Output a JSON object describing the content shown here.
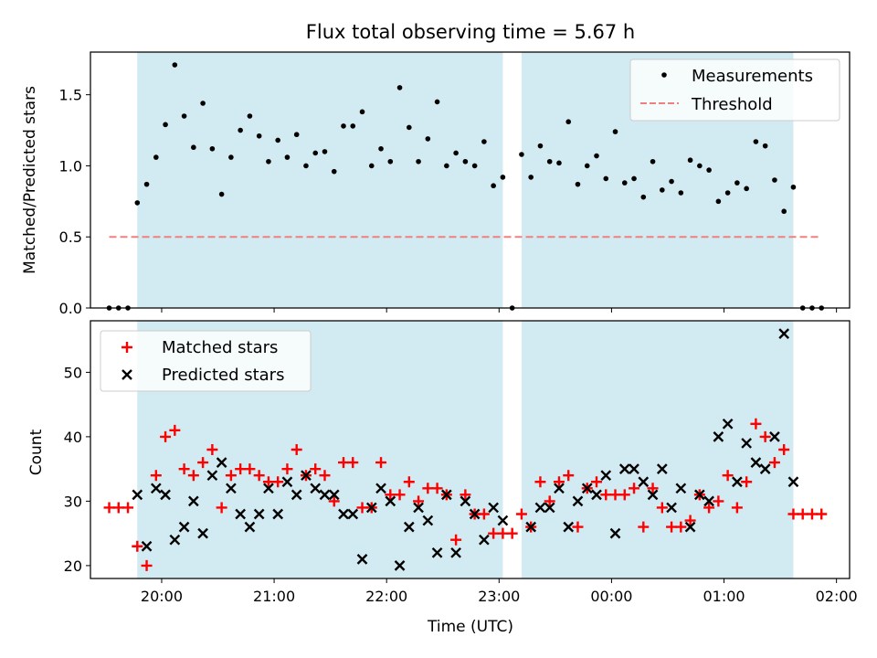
{
  "chart_data": [
    {
      "type": "scatter",
      "title": "Flux total observing time = 5.67 h",
      "ylabel": "Matched/Predicted stars",
      "ylim": [
        0,
        1.8
      ],
      "yticks": [
        0.0,
        0.5,
        1.0,
        1.5
      ],
      "ytick_labels": [
        "0.0",
        "0.5",
        "1.0",
        "1.5"
      ],
      "shaded_intervals": [
        [
          "19:47",
          "23:02"
        ],
        [
          "23:12",
          "01:37"
        ]
      ],
      "shade_color": "#add8e6",
      "legend_position": "upper right",
      "series": [
        {
          "name": "Measurements",
          "marker": "dot",
          "color": "#000000",
          "x": [
            "19:32",
            "19:37",
            "19:42",
            "19:47",
            "19:52",
            "19:57",
            "20:02",
            "20:07",
            "20:12",
            "20:17",
            "20:22",
            "20:27",
            "20:32",
            "20:37",
            "20:42",
            "20:47",
            "20:52",
            "20:57",
            "21:02",
            "21:07",
            "21:12",
            "21:17",
            "21:22",
            "21:27",
            "21:32",
            "21:37",
            "21:42",
            "21:47",
            "21:52",
            "21:57",
            "22:02",
            "22:07",
            "22:12",
            "22:17",
            "22:22",
            "22:27",
            "22:32",
            "22:37",
            "22:42",
            "22:47",
            "22:52",
            "22:57",
            "23:02",
            "23:07",
            "23:12",
            "23:17",
            "23:22",
            "23:27",
            "23:32",
            "23:37",
            "23:42",
            "23:47",
            "23:52",
            "23:57",
            "00:02",
            "00:07",
            "00:12",
            "00:17",
            "00:22",
            "00:27",
            "00:32",
            "00:37",
            "00:42",
            "00:47",
            "00:52",
            "00:57",
            "01:02",
            "01:07",
            "01:12",
            "01:17",
            "01:22",
            "01:27",
            "01:32",
            "01:37",
            "01:42",
            "01:47",
            "01:52"
          ],
          "y": [
            0.0,
            0.0,
            0.0,
            0.74,
            0.87,
            1.06,
            1.29,
            1.71,
            1.35,
            1.13,
            1.44,
            1.12,
            0.8,
            1.06,
            1.25,
            1.35,
            1.21,
            1.03,
            1.18,
            1.06,
            1.22,
            1.0,
            1.09,
            1.1,
            0.96,
            1.28,
            1.28,
            1.38,
            1.0,
            1.12,
            1.03,
            1.55,
            1.27,
            1.03,
            1.19,
            1.45,
            1.0,
            1.09,
            1.03,
            1.0,
            1.17,
            0.86,
            0.92,
            0.0,
            1.08,
            0.92,
            1.14,
            1.03,
            1.02,
            1.31,
            0.87,
            1.0,
            1.07,
            0.91,
            1.24,
            0.88,
            0.91,
            0.78,
            1.03,
            0.83,
            0.89,
            0.81,
            1.04,
            1.0,
            0.97,
            0.75,
            0.81,
            0.88,
            0.84,
            1.17,
            1.14,
            0.9,
            0.68,
            0.85,
            0.0,
            0.0,
            0.0
          ]
        },
        {
          "name": "Threshold",
          "marker": "dashed-line",
          "color": "#f08080",
          "x": [
            "19:32",
            "01:52"
          ],
          "y": [
            0.5,
            0.5
          ]
        }
      ]
    },
    {
      "type": "scatter",
      "xlabel": "Time (UTC)",
      "ylabel": "Count",
      "ylim": [
        18,
        58
      ],
      "yticks": [
        20,
        30,
        40,
        50
      ],
      "ytick_labels": [
        "20",
        "30",
        "40",
        "50"
      ],
      "xlim": [
        "19:22",
        "02:07"
      ],
      "xticks": [
        "20:00",
        "21:00",
        "22:00",
        "23:00",
        "00:00",
        "01:00",
        "02:00"
      ],
      "xtick_labels": [
        "20:00",
        "21:00",
        "22:00",
        "23:00",
        "00:00",
        "01:00",
        "02:00"
      ],
      "shaded_intervals": [
        [
          "19:47",
          "23:02"
        ],
        [
          "23:12",
          "01:37"
        ]
      ],
      "shade_color": "#add8e6",
      "legend_position": "upper left",
      "series": [
        {
          "name": "Matched stars",
          "marker": "plus",
          "color": "#ff0000",
          "x": [
            "19:32",
            "19:37",
            "19:42",
            "19:47",
            "19:52",
            "19:57",
            "20:02",
            "20:07",
            "20:12",
            "20:17",
            "20:22",
            "20:27",
            "20:32",
            "20:37",
            "20:42",
            "20:47",
            "20:52",
            "20:57",
            "21:02",
            "21:07",
            "21:12",
            "21:17",
            "21:22",
            "21:27",
            "21:32",
            "21:37",
            "21:42",
            "21:47",
            "21:52",
            "21:57",
            "22:02",
            "22:07",
            "22:12",
            "22:17",
            "22:22",
            "22:27",
            "22:32",
            "22:37",
            "22:42",
            "22:47",
            "22:52",
            "22:57",
            "23:02",
            "23:07",
            "23:12",
            "23:17",
            "23:22",
            "23:27",
            "23:32",
            "23:37",
            "23:42",
            "23:47",
            "23:52",
            "23:57",
            "00:02",
            "00:07",
            "00:12",
            "00:17",
            "00:22",
            "00:27",
            "00:32",
            "00:37",
            "00:42",
            "00:47",
            "00:52",
            "00:57",
            "01:02",
            "01:07",
            "01:12",
            "01:17",
            "01:22",
            "01:27",
            "01:32",
            "01:37",
            "01:42",
            "01:47",
            "01:52"
          ],
          "y": [
            29,
            29,
            29,
            23,
            20,
            34,
            40,
            41,
            35,
            34,
            36,
            38,
            29,
            34,
            35,
            35,
            34,
            33,
            33,
            35,
            38,
            34,
            35,
            34,
            30,
            36,
            36,
            29,
            29,
            36,
            31,
            31,
            33,
            30,
            32,
            32,
            31,
            24,
            31,
            28,
            28,
            25,
            25,
            25,
            28,
            26,
            33,
            30,
            33,
            34,
            26,
            32,
            33,
            31,
            31,
            31,
            32,
            26,
            32,
            29,
            26,
            26,
            27,
            31,
            29,
            30,
            34,
            29,
            33,
            42,
            40,
            36,
            38,
            28,
            28,
            28,
            28
          ]
        },
        {
          "name": "Predicted stars",
          "marker": "x",
          "color": "#000000",
          "x": [
            "19:47",
            "19:52",
            "19:57",
            "20:02",
            "20:07",
            "20:12",
            "20:17",
            "20:22",
            "20:27",
            "20:32",
            "20:37",
            "20:42",
            "20:47",
            "20:52",
            "20:57",
            "21:02",
            "21:07",
            "21:12",
            "21:17",
            "21:22",
            "21:27",
            "21:32",
            "21:37",
            "21:42",
            "21:47",
            "21:52",
            "21:57",
            "22:02",
            "22:07",
            "22:12",
            "22:17",
            "22:22",
            "22:27",
            "22:32",
            "22:37",
            "22:42",
            "22:47",
            "22:52",
            "22:57",
            "23:02",
            "23:17",
            "23:22",
            "23:27",
            "23:32",
            "23:37",
            "23:42",
            "23:47",
            "23:52",
            "23:57",
            "00:02",
            "00:07",
            "00:12",
            "00:17",
            "00:22",
            "00:27",
            "00:32",
            "00:37",
            "00:42",
            "00:47",
            "00:52",
            "00:57",
            "01:02",
            "01:07",
            "01:12",
            "01:17",
            "01:22",
            "01:27",
            "01:32",
            "01:37"
          ],
          "y": [
            31,
            23,
            32,
            31,
            24,
            26,
            30,
            25,
            34,
            36,
            32,
            28,
            26,
            28,
            32,
            28,
            33,
            31,
            34,
            32,
            31,
            31,
            28,
            28,
            21,
            29,
            32,
            30,
            20,
            26,
            29,
            27,
            22,
            31,
            22,
            30,
            28,
            24,
            29,
            27,
            26,
            29,
            29,
            32,
            26,
            30,
            32,
            31,
            34,
            25,
            35,
            35,
            33,
            31,
            35,
            29,
            32,
            26,
            31,
            30,
            40,
            42,
            33,
            39,
            36,
            35,
            40,
            56,
            33
          ]
        }
      ]
    }
  ]
}
